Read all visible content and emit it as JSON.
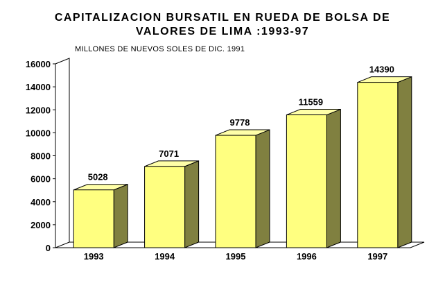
{
  "chart_data": {
    "type": "bar",
    "title_line1": "CAPITALIZACION BURSATIL EN RUEDA DE BOLSA DE",
    "title_line2": "VALORES DE LIMA :1993-97",
    "subtitle": "MILLONES DE NUEVOS SOLES DE DIC. 1991",
    "categories": [
      "1993",
      "1994",
      "1995",
      "1996",
      "1997"
    ],
    "values": [
      5028,
      7071,
      9778,
      11559,
      14390
    ],
    "ylim": [
      0,
      16000
    ],
    "yticks": [
      0,
      2000,
      4000,
      6000,
      8000,
      10000,
      12000,
      14000,
      16000
    ],
    "grid": false,
    "colors": {
      "bar_front": "#ffff80",
      "bar_side": "#808040",
      "bar_top": "#ffffa8",
      "axis": "#000000"
    }
  }
}
